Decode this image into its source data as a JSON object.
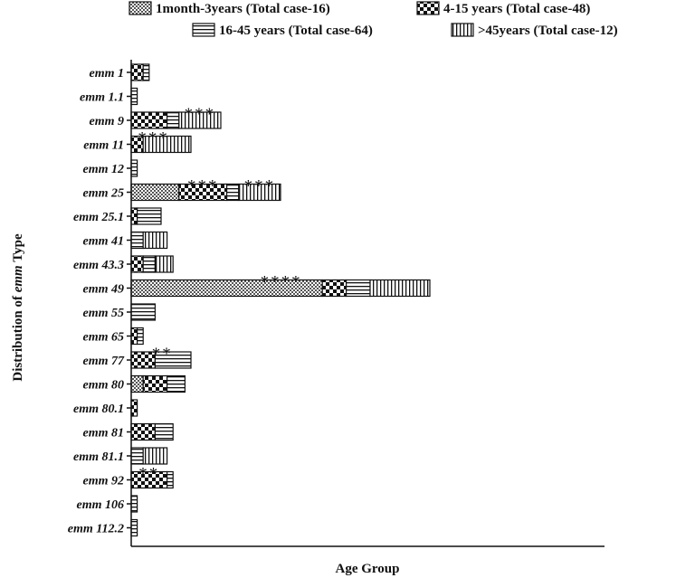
{
  "chart_data": {
    "type": "bar",
    "stacked": true,
    "orientation": "horizontal",
    "xlabel": "Age Group",
    "ylabel_prefix": "Distribution of ",
    "ylabel_emph": "emm",
    "ylabel_suffix": " Type",
    "legend_position": "top",
    "grid": false,
    "categories": [
      "emm 1",
      "emm 1.1",
      "emm 9",
      "emm 11",
      "emm 12",
      "emm 25",
      "emm 25.1",
      "emm 41",
      "emm 43.3",
      "emm 49",
      "emm 55",
      "emm 65",
      "emm 77",
      "emm 80",
      "emm 80.1",
      "emm 81",
      "emm 81.1",
      "emm 92",
      "emm 106",
      "emm 112.2"
    ],
    "series": [
      {
        "name": "1month-3years (Total case-16)",
        "pattern": "fine-check",
        "values": [
          0,
          0,
          0,
          0,
          0,
          4,
          0,
          0,
          0,
          16,
          0,
          0,
          0,
          1,
          0,
          0,
          0,
          0,
          0,
          0
        ]
      },
      {
        "name": "4-15 years (Total case-48)",
        "pattern": "bold-check",
        "values": [
          1,
          0,
          3,
          1,
          0,
          4,
          0.5,
          0,
          1,
          2,
          0,
          0.5,
          2,
          2,
          0.5,
          2,
          0,
          3,
          0,
          0
        ]
      },
      {
        "name": "16-45 years (Total case-64)",
        "pattern": "horizontal",
        "values": [
          0.5,
          0.5,
          1,
          0,
          0.5,
          1,
          2,
          1,
          1,
          2,
          2,
          0.5,
          3,
          1.5,
          0,
          1.5,
          1,
          0.5,
          0.5,
          0.5
        ]
      },
      {
        "name": ">45years (Total case-12)",
        "pattern": "vertical",
        "values": [
          0,
          0,
          3.5,
          4,
          0,
          3.5,
          0,
          2,
          1.5,
          5,
          0,
          0,
          0,
          0,
          0,
          0,
          2,
          0,
          0,
          0
        ]
      }
    ],
    "annotations": [
      {
        "category": "emm 9",
        "text": "***"
      },
      {
        "category": "emm 11",
        "text": "***"
      },
      {
        "category": "emm 25",
        "text": "***"
      },
      {
        "category": "emm 25",
        "text": "***"
      },
      {
        "category": "emm 49",
        "text": "****"
      },
      {
        "category": "emm 77",
        "text": "**"
      },
      {
        "category": "emm 92",
        "text": "**"
      }
    ]
  }
}
